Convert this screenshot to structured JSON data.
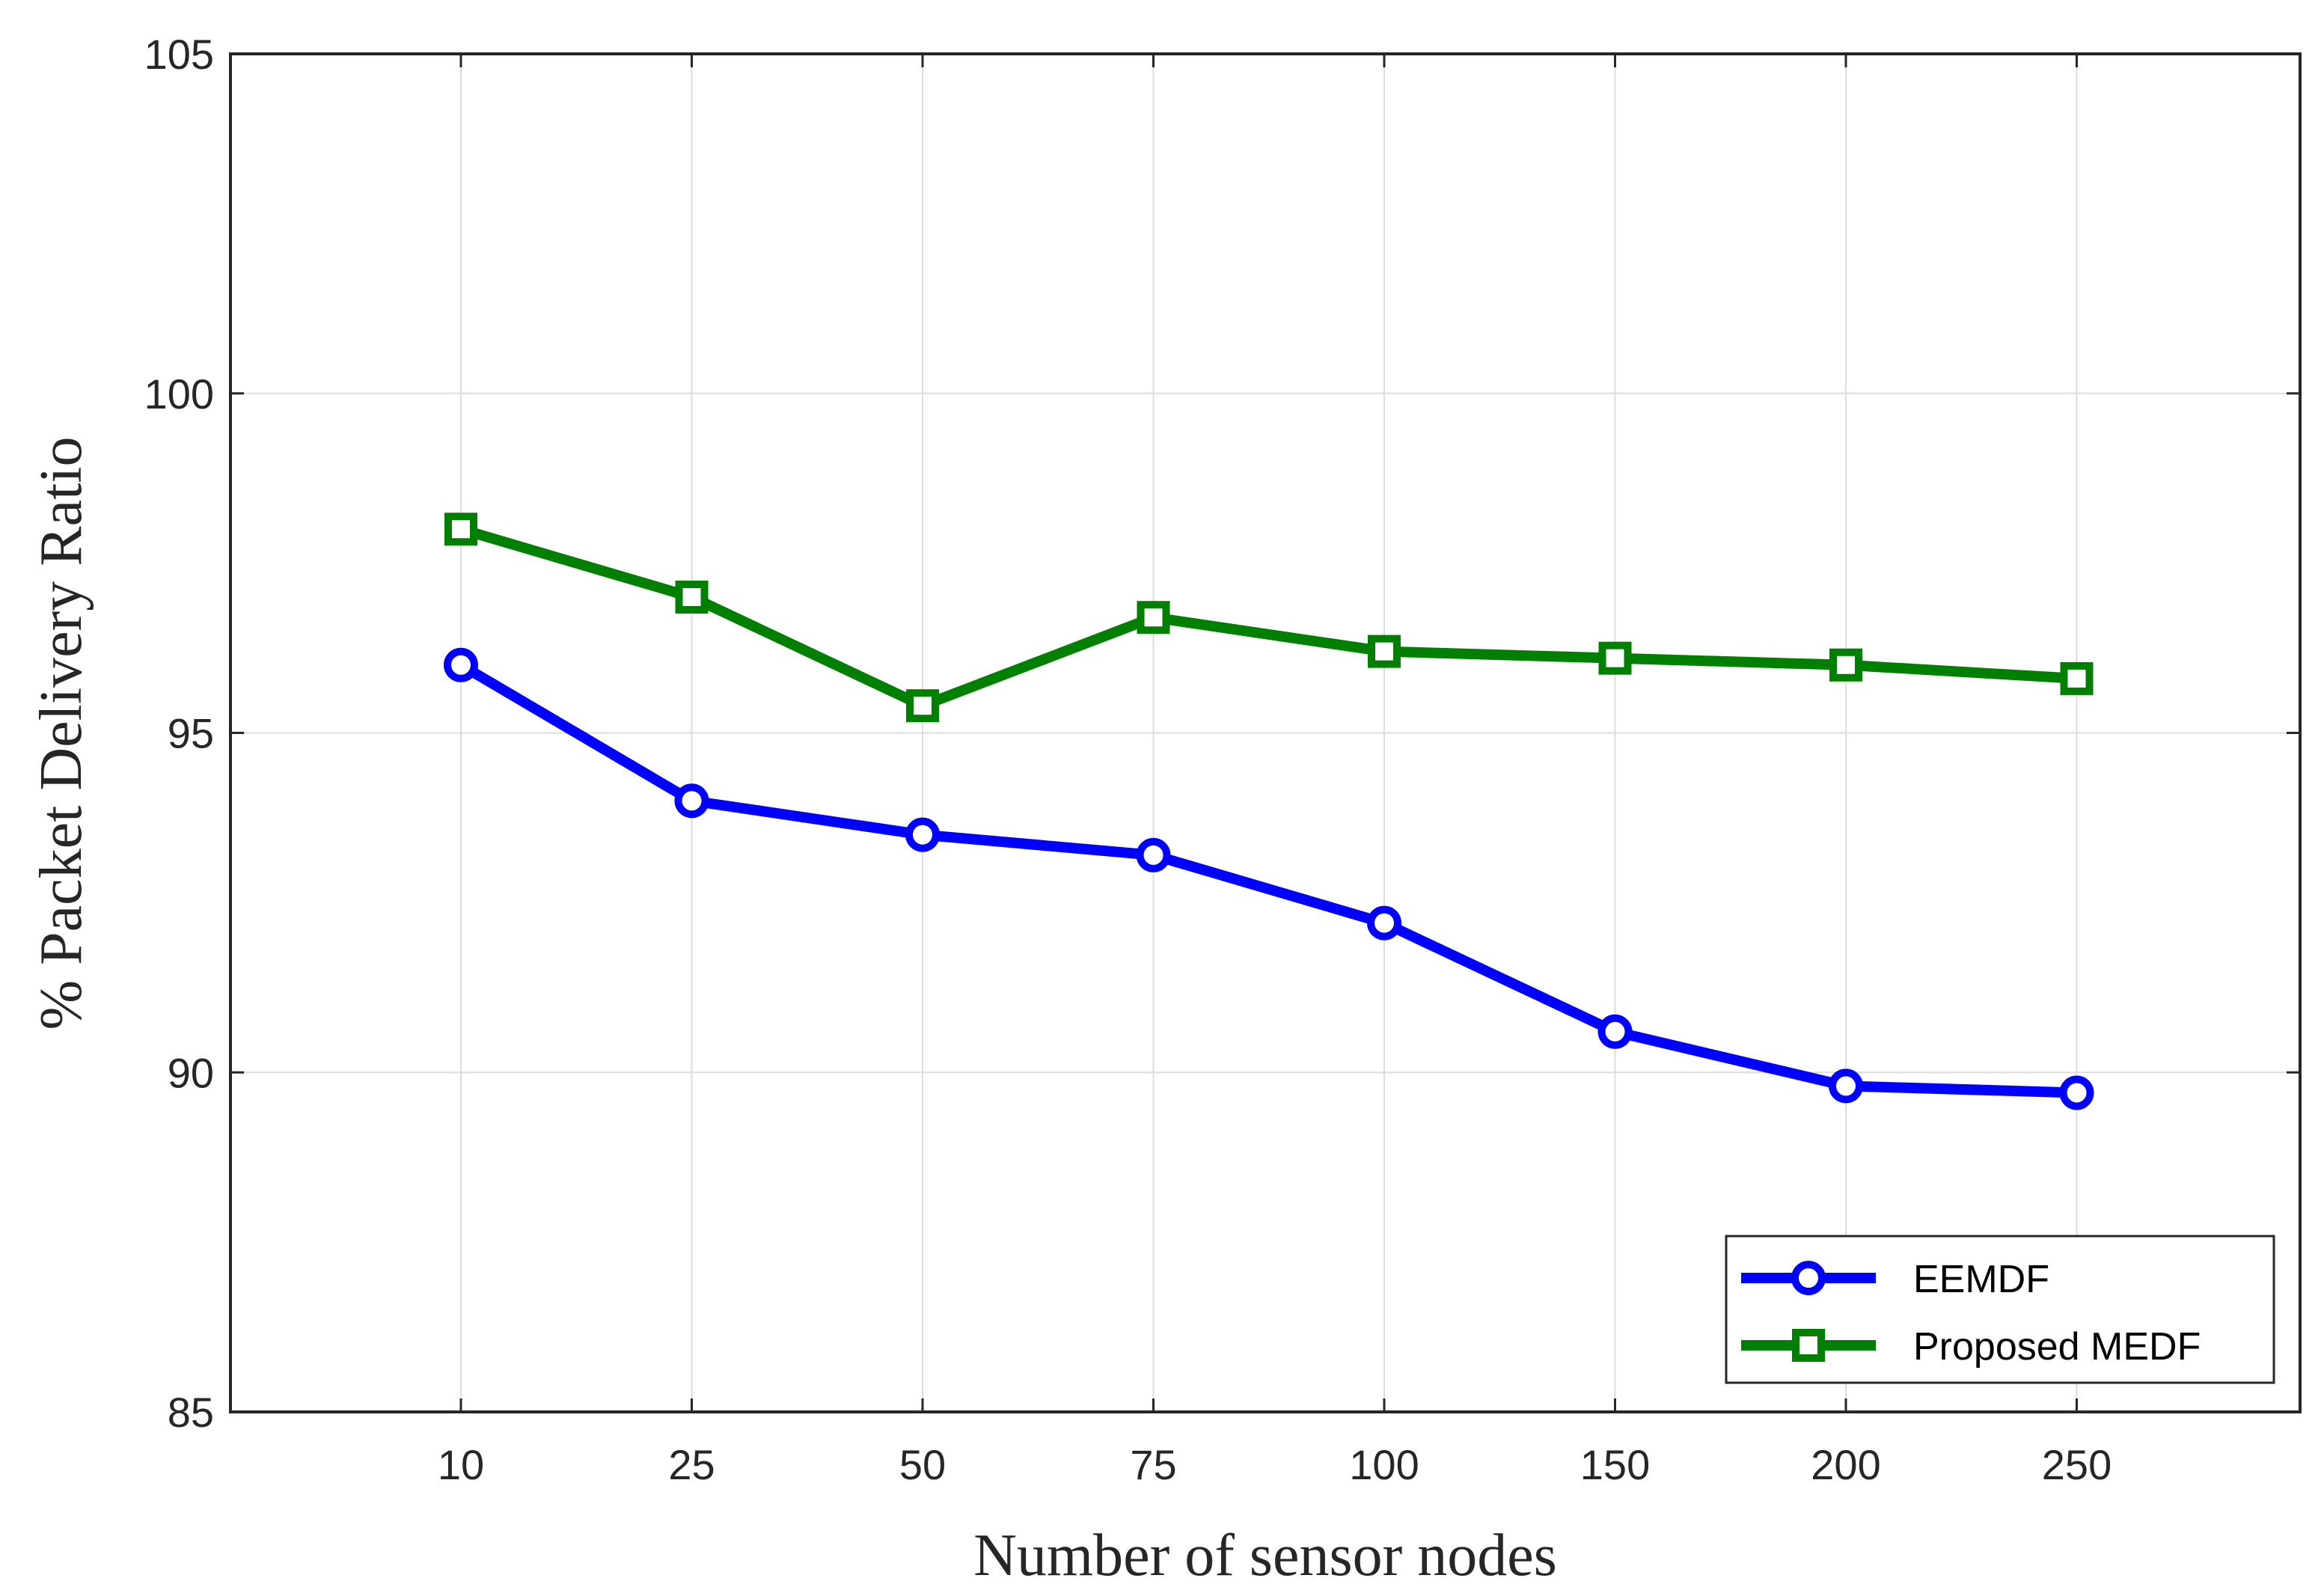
{
  "chart_data": {
    "type": "line",
    "title": "",
    "xlabel": "Number of sensor nodes",
    "ylabel": "% Packet Delivery Ratio",
    "categories": [
      "10",
      "25",
      "50",
      "75",
      "100",
      "150",
      "200",
      "250"
    ],
    "ylim": [
      85,
      105
    ],
    "yticks": [
      "85",
      "90",
      "95",
      "100",
      "105"
    ],
    "grid": true,
    "legend_position": "bottom-right",
    "series": [
      {
        "name": "EEMDF",
        "marker": "circle",
        "color": "#0000ff",
        "values": [
          96.0,
          94.0,
          93.5,
          93.2,
          92.2,
          90.6,
          89.8,
          89.7
        ]
      },
      {
        "name": "Proposed MEDF",
        "marker": "square",
        "color": "#007f00",
        "values": [
          98.0,
          97.0,
          95.4,
          96.7,
          96.2,
          96.1,
          96.0,
          95.8
        ]
      }
    ]
  }
}
